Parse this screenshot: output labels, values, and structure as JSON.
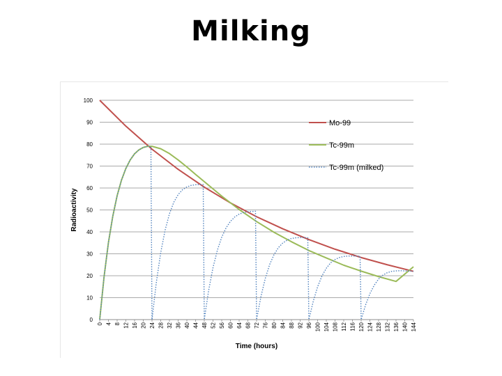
{
  "slide": {
    "title": "Milking"
  },
  "chart_data": {
    "type": "line",
    "title": "",
    "xlabel": "Time (hours)",
    "ylabel": "Radioactivity",
    "xlim": [
      0,
      144
    ],
    "ylim": [
      0,
      100
    ],
    "x_ticks": [
      0,
      4,
      8,
      12,
      16,
      20,
      24,
      28,
      32,
      36,
      40,
      44,
      48,
      52,
      56,
      60,
      64,
      68,
      72,
      76,
      80,
      84,
      88,
      92,
      96,
      100,
      104,
      108,
      112,
      116,
      120,
      124,
      128,
      132,
      136,
      140,
      144
    ],
    "y_ticks": [
      0,
      10,
      20,
      30,
      40,
      50,
      60,
      70,
      80,
      90,
      100
    ],
    "grid": "horizontal",
    "legend_position": "right",
    "series": [
      {
        "name": "Mo-99",
        "color": "#c0504d",
        "dash": "solid",
        "points": [
          [
            0,
            100
          ],
          [
            12,
            88.2
          ],
          [
            24,
            77.7
          ],
          [
            36,
            68.5
          ],
          [
            48,
            60.4
          ],
          [
            60,
            53.2
          ],
          [
            72,
            46.9
          ],
          [
            84,
            41.4
          ],
          [
            96,
            36.5
          ],
          [
            108,
            32.1
          ],
          [
            120,
            28.3
          ],
          [
            132,
            25.0
          ],
          [
            144,
            22.0
          ]
        ]
      },
      {
        "name": "Tc-99m",
        "color": "#9bbb59",
        "dash": "solid",
        "points": [
          [
            0,
            0
          ],
          [
            2,
            19.5
          ],
          [
            4,
            35.1
          ],
          [
            6,
            47.1
          ],
          [
            8,
            56.5
          ],
          [
            10,
            63.6
          ],
          [
            12,
            68.9
          ],
          [
            14,
            72.8
          ],
          [
            16,
            75.6
          ],
          [
            18,
            77.4
          ],
          [
            20,
            78.5
          ],
          [
            22,
            79.0
          ],
          [
            24,
            79.0
          ],
          [
            28,
            77.9
          ],
          [
            32,
            75.7
          ],
          [
            36,
            72.8
          ],
          [
            40,
            69.6
          ],
          [
            44,
            66.2
          ],
          [
            48,
            62.9
          ],
          [
            56,
            56.3
          ],
          [
            64,
            50.2
          ],
          [
            72,
            44.7
          ],
          [
            80,
            39.8
          ],
          [
            88,
            35.5
          ],
          [
            96,
            31.5
          ],
          [
            104,
            28.1
          ],
          [
            112,
            24.8
          ],
          [
            120,
            22.1
          ],
          [
            128,
            19.6
          ],
          [
            136,
            17.4
          ],
          [
            144,
            24.1
          ]
        ]
      },
      {
        "name": "Tc-99m (milked)",
        "color": "#4f81bd",
        "dash": "dotted",
        "points": [
          [
            0,
            0
          ],
          [
            2,
            19.5
          ],
          [
            4,
            35.1
          ],
          [
            6,
            47.1
          ],
          [
            8,
            56.5
          ],
          [
            10,
            63.6
          ],
          [
            12,
            68.9
          ],
          [
            14,
            72.8
          ],
          [
            16,
            75.6
          ],
          [
            18,
            77.4
          ],
          [
            20,
            78.5
          ],
          [
            22,
            79.0
          ],
          [
            23.5,
            79.0
          ],
          [
            24,
            0
          ],
          [
            26,
            17.0
          ],
          [
            28,
            30.5
          ],
          [
            30,
            40.7
          ],
          [
            32,
            48.2
          ],
          [
            34,
            53.5
          ],
          [
            36,
            57.0
          ],
          [
            38,
            59.2
          ],
          [
            40,
            60.5
          ],
          [
            42,
            61.2
          ],
          [
            44,
            61.5
          ],
          [
            47.5,
            61.6
          ],
          [
            48,
            0
          ],
          [
            50,
            13.3
          ],
          [
            52,
            23.7
          ],
          [
            54,
            31.6
          ],
          [
            56,
            37.6
          ],
          [
            58,
            41.8
          ],
          [
            60,
            44.8
          ],
          [
            62,
            46.8
          ],
          [
            64,
            48.1
          ],
          [
            66,
            48.8
          ],
          [
            68,
            49.2
          ],
          [
            71.5,
            49.4
          ],
          [
            72,
            0
          ],
          [
            74,
            10.5
          ],
          [
            76,
            18.8
          ],
          [
            78,
            25.1
          ],
          [
            80,
            29.6
          ],
          [
            82,
            32.8
          ],
          [
            84,
            34.9
          ],
          [
            86,
            36.2
          ],
          [
            88,
            37.0
          ],
          [
            90,
            37.3
          ],
          [
            92,
            37.4
          ],
          [
            95.5,
            37.3
          ],
          [
            96,
            0
          ],
          [
            98,
            8.3
          ],
          [
            100,
            14.9
          ],
          [
            102,
            19.9
          ],
          [
            104,
            23.4
          ],
          [
            106,
            25.9
          ],
          [
            108,
            27.4
          ],
          [
            110,
            28.3
          ],
          [
            112,
            28.8
          ],
          [
            114,
            29.0
          ],
          [
            116,
            29.0
          ],
          [
            119.5,
            28.9
          ],
          [
            120,
            0
          ],
          [
            122,
            6.6
          ],
          [
            124,
            11.8
          ],
          [
            126,
            15.7
          ],
          [
            128,
            18.5
          ],
          [
            130,
            20.3
          ],
          [
            132,
            21.4
          ],
          [
            134,
            22.0
          ],
          [
            136,
            22.2
          ],
          [
            138,
            22.3
          ],
          [
            140,
            22.2
          ],
          [
            144,
            22.0
          ]
        ]
      }
    ]
  }
}
